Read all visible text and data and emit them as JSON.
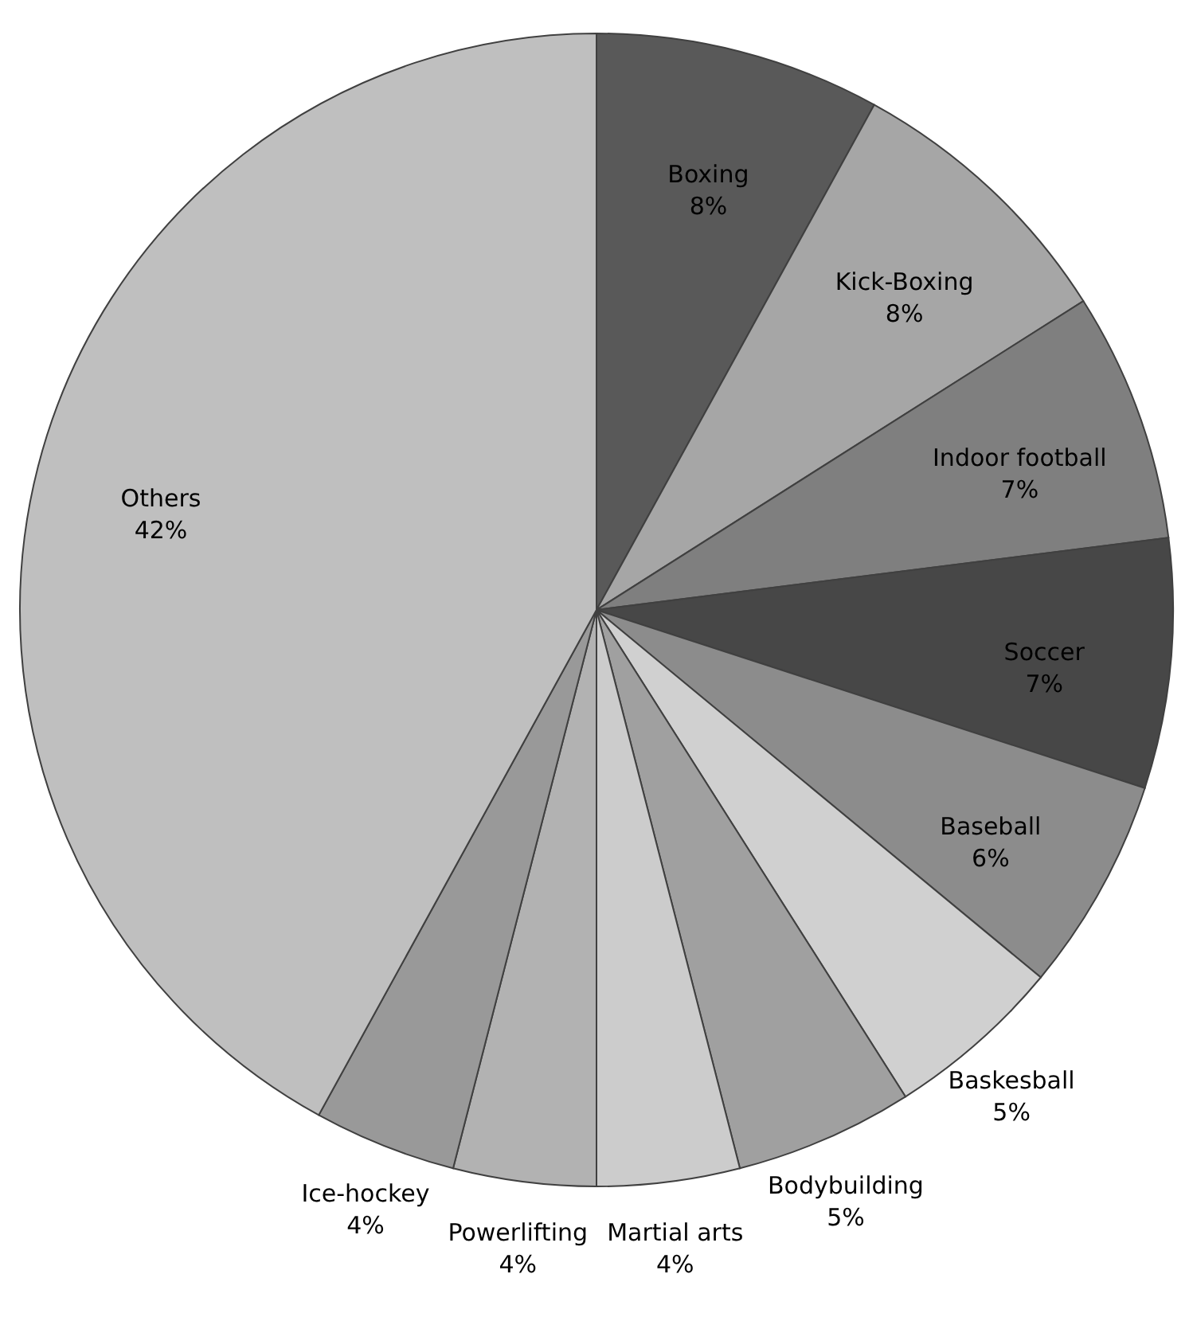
{
  "chart_data": {
    "type": "pie",
    "data_labels": true,
    "categories": [
      "Boxing",
      "Kick-Boxing",
      "Indoor football",
      "Soccer",
      "Baseball",
      "Baskesball",
      "Bodybuilding",
      "Martial arts",
      "Powerlifting",
      "Ice-hockey",
      "Others"
    ],
    "values": [
      8,
      8,
      7,
      7,
      6,
      5,
      5,
      4,
      4,
      4,
      42
    ],
    "value_labels": [
      "8%",
      "8%",
      "7%",
      "7%",
      "6%",
      "5%",
      "5%",
      "4%",
      "4%",
      "4%",
      "42%"
    ],
    "colors": [
      "#595959",
      "#a6a6a6",
      "#7f7f7f",
      "#474747",
      "#8c8c8c",
      "#d0d0d0",
      "#a0a0a0",
      "#cccccc",
      "#b2b2b2",
      "#999999",
      "#bfbfbf"
    ]
  }
}
